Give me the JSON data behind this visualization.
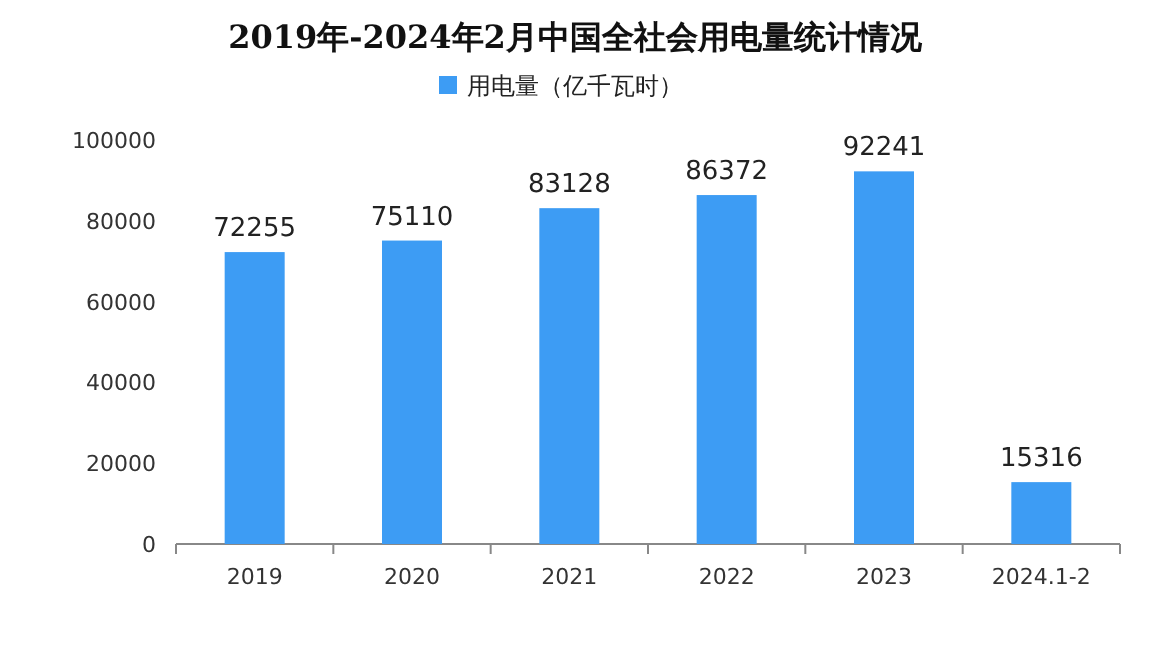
{
  "chart_data": {
    "type": "bar",
    "title": "2019年-2024年2月中国全社会用电量统计情况",
    "categories": [
      "2019",
      "2020",
      "2021",
      "2022",
      "2023",
      "2024.1-2"
    ],
    "series": [
      {
        "name": "用电量（亿千瓦时）",
        "color": "#3d9cf4",
        "values": [
          72255,
          75110,
          83128,
          86372,
          92241,
          15316
        ]
      }
    ],
    "ylim": [
      0,
      100000
    ],
    "yticks": [
      0,
      20000,
      40000,
      60000,
      80000,
      100000
    ],
    "data_labels": true,
    "legend": "top",
    "grid": false
  }
}
